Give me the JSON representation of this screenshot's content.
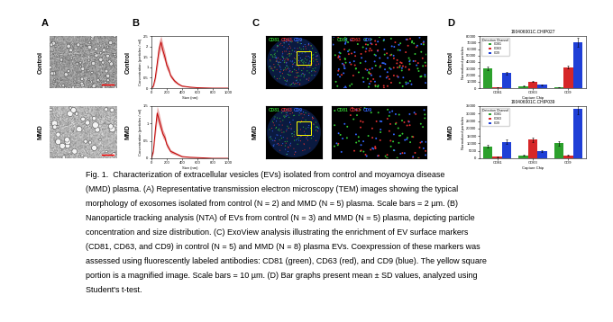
{
  "panel_labels": [
    "A",
    "B",
    "C",
    "D"
  ],
  "row_labels": [
    "Control",
    "MMD"
  ],
  "panel_c": {
    "markers": [
      {
        "name": "CD81",
        "color": "#33cc33"
      },
      {
        "name": "CD63",
        "color": "#e03030"
      },
      {
        "name": "CD9",
        "color": "#3366ff"
      }
    ]
  },
  "nta": [
    {
      "type": "line",
      "x_label": "Size (nm)",
      "y_label": "Concentration (particles / ml)",
      "color": "#c00000",
      "x": [
        0,
        25,
        50,
        75,
        100,
        125,
        150,
        175,
        200,
        225,
        250,
        300,
        350,
        400,
        500,
        600,
        700,
        800,
        1000
      ],
      "values": [
        0,
        0.1,
        0.5,
        1.2,
        1.9,
        2.2,
        1.8,
        1.5,
        1.1,
        0.9,
        0.6,
        0.35,
        0.2,
        0.1,
        0.05,
        0.02,
        0.01,
        0,
        0
      ],
      "error": [
        0,
        0.05,
        0.15,
        0.3,
        0.35,
        0.3,
        0.3,
        0.25,
        0.2,
        0.15,
        0.1,
        0.08,
        0.05,
        0.03,
        0.02,
        0.01,
        0.01,
        0,
        0
      ],
      "xlim": [
        0,
        1000
      ],
      "xticks": [
        0,
        200,
        400,
        600,
        800,
        1000
      ],
      "ylim": [
        0,
        2.5
      ],
      "yticks": [
        0,
        0.5,
        1,
        1.5,
        2,
        2.5
      ]
    },
    {
      "type": "line",
      "x_label": "Size (nm)",
      "y_label": "Concentration (particles / ml)",
      "color": "#c00000",
      "x": [
        0,
        25,
        50,
        75,
        100,
        125,
        150,
        175,
        200,
        225,
        250,
        300,
        350,
        400,
        500,
        600,
        700,
        800,
        1000
      ],
      "values": [
        0,
        0.2,
        0.8,
        1.3,
        1.1,
        0.9,
        0.7,
        0.6,
        0.4,
        0.3,
        0.2,
        0.15,
        0.1,
        0.05,
        0.03,
        0.02,
        0.01,
        0,
        0
      ],
      "error": [
        0,
        0.05,
        0.15,
        0.2,
        0.2,
        0.15,
        0.12,
        0.1,
        0.08,
        0.06,
        0.05,
        0.04,
        0.03,
        0.02,
        0.01,
        0.01,
        0.01,
        0,
        0
      ],
      "xlim": [
        0,
        1000
      ],
      "xticks": [
        0,
        200,
        400,
        600,
        800,
        1000
      ],
      "ylim": [
        0,
        1.5
      ],
      "yticks": [
        0,
        0.5,
        1,
        1.5
      ]
    }
  ],
  "chart_data": [
    {
      "type": "bar",
      "title": "190406001C.CHIP027",
      "x_label": "Capture Chip",
      "y_label": "Normalized particles",
      "categories": [
        "CD81",
        "CD63",
        "CD9"
      ],
      "legend": "upper left",
      "legend_title": "Detection Channel",
      "series": [
        {
          "name": "CD81",
          "color": "#2ca02c",
          "values": [
            30000,
            3000,
            1000
          ],
          "error": [
            3000,
            500,
            300
          ]
        },
        {
          "name": "CD63",
          "color": "#d62728",
          "values": [
            1000,
            10000,
            32000
          ],
          "error": [
            300,
            800,
            2000
          ]
        },
        {
          "name": "CD9",
          "color": "#1f3fd6",
          "values": [
            23000,
            5000,
            70000
          ],
          "error": [
            2500,
            600,
            7000
          ]
        }
      ],
      "ylim": [
        0,
        80000
      ],
      "yticks": [
        0,
        10000,
        20000,
        30000,
        40000,
        50000,
        60000,
        70000,
        80000
      ]
    },
    {
      "type": "bar",
      "title": "190406001C.CHIP039",
      "x_label": "Capture Chip",
      "y_label": "Normalized particles",
      "categories": [
        "CD81",
        "CD63",
        "CD9"
      ],
      "legend": "upper left",
      "legend_title": "Detection Channel",
      "series": [
        {
          "name": "CD81",
          "color": "#2ca02c",
          "values": [
            8000,
            2000,
            10000
          ],
          "error": [
            1000,
            400,
            1500
          ]
        },
        {
          "name": "CD63",
          "color": "#d62728",
          "values": [
            1000,
            12500,
            2000
          ],
          "error": [
            200,
            1500,
            400
          ]
        },
        {
          "name": "CD9",
          "color": "#1f3fd6",
          "values": [
            11000,
            5000,
            33000
          ],
          "error": [
            1500,
            600,
            3500
          ]
        }
      ],
      "ylim": [
        0,
        35000
      ],
      "yticks": [
        0,
        5000,
        10000,
        15000,
        20000,
        25000,
        30000,
        35000
      ]
    }
  ],
  "caption_lines": [
    "Fig. 1.  Characterization of extracellular vesicles (EVs) isolated from control and moyamoya disease",
    "(MMD) plasma. (A) Representative transmission electron microscopy (TEM) images showing the typical",
    "morphology of exosomes isolated from control (N = 2) and MMD (N = 5) plasma. Scale bars = 2 µm. (B)",
    "Nanoparticle tracking analysis (NTA) of EVs from control (N = 3) and MMD (N = 5) plasma, depicting particle",
    "concentration and size distribution. (C) ExoView analysis illustrating the enrichment of EV surface markers",
    "(CD81, CD63, and CD9) in control (N = 5) and MMD (N = 8) plasma EVs. Coexpression of these markers was",
    "assessed using fluorescently labeled antibodies: CD81 (green), CD63 (red), and CD9 (blue). The yellow square",
    "portion is a magnified image. Scale bars = 10 µm. (D) Bar graphs present mean ± SD values, analyzed using",
    "Student's t-test."
  ]
}
